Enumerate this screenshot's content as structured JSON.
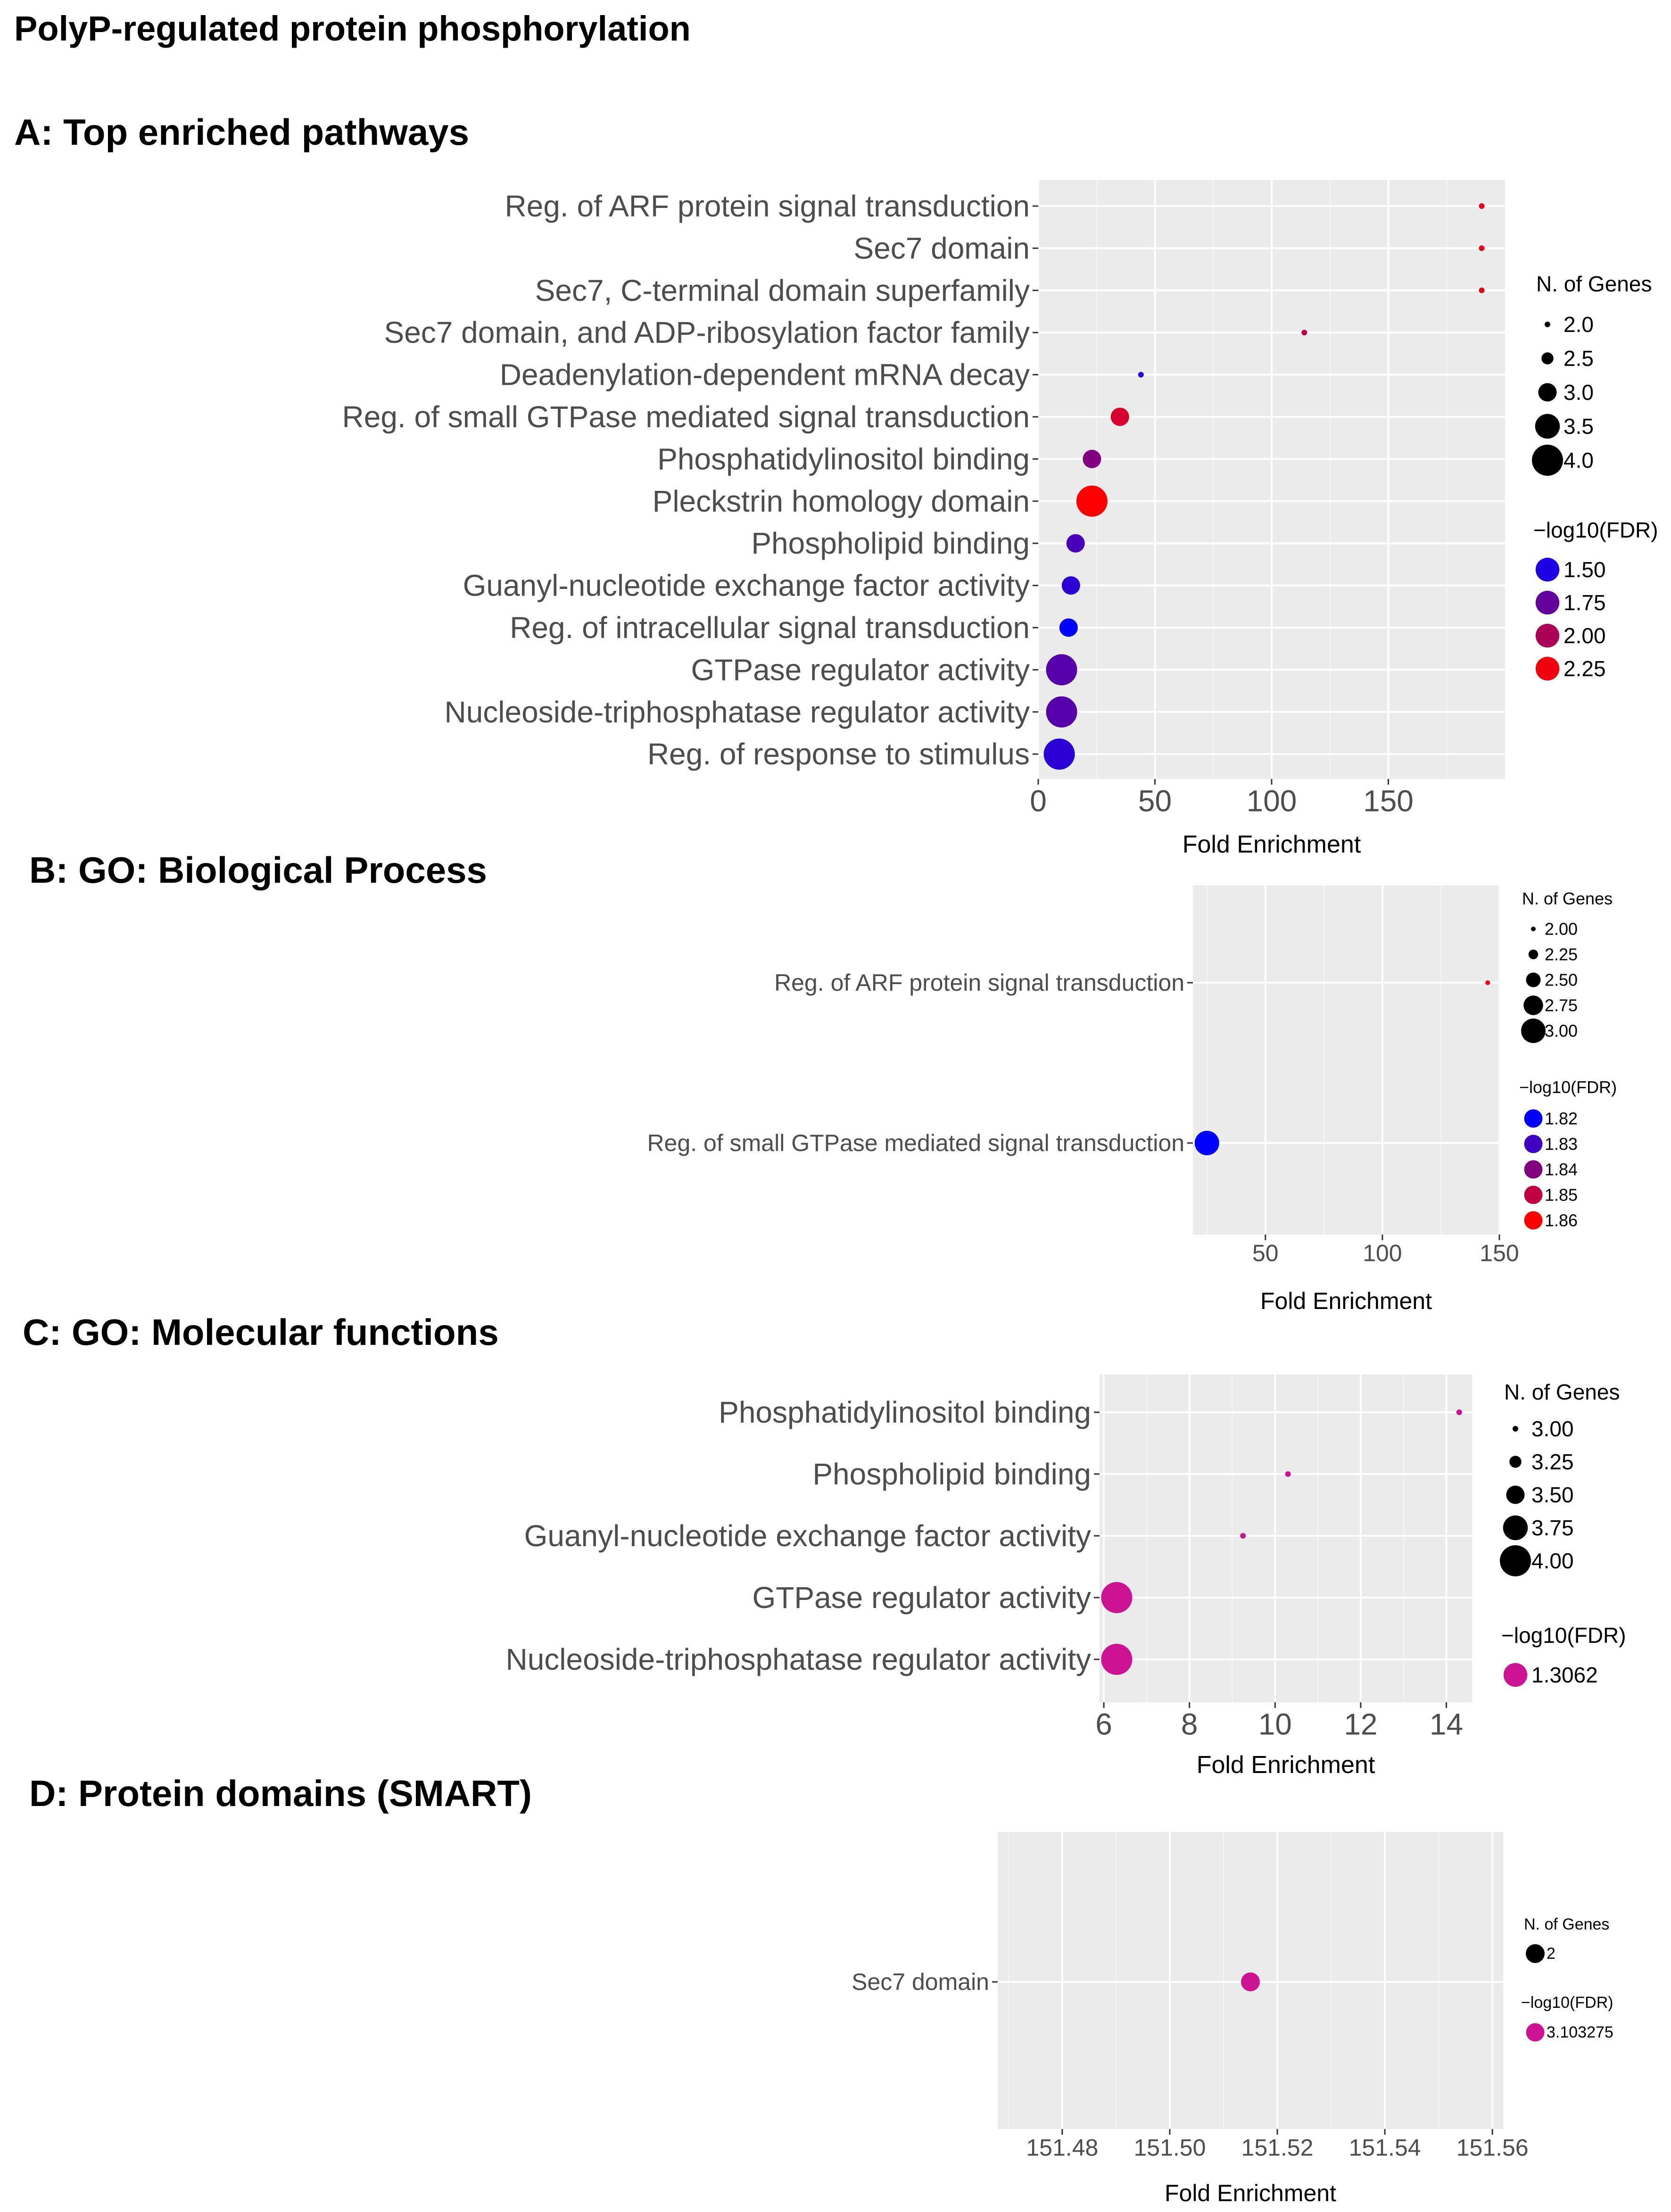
{
  "figure": {
    "title": "PolyP-regulated protein phosphorylation"
  },
  "chart_data": [
    {
      "id": "A",
      "type": "scatter",
      "title": "A: Top enriched pathways",
      "xlabel": "Fold Enrichment",
      "ylabel": "",
      "xlim": [
        0,
        200
      ],
      "xticks": [
        0,
        50,
        100,
        150
      ],
      "categories": [
        "Reg. of ARF protein signal transduction",
        "Sec7 domain",
        "Sec7, C-terminal domain superfamily",
        "Sec7 domain, and ADP-ribosylation factor family",
        "Deadenylation-dependent mRNA decay",
        "Reg. of small GTPase mediated signal transduction",
        "Phosphatidylinositol binding",
        "Pleckstrin homology domain",
        "Phospholipid binding",
        "Guanyl-nucleotide exchange factor activity",
        "Reg. of intracellular signal transduction",
        "GTPase regulator activity",
        "Nucleoside-triphosphatase regulator activity",
        "Reg. of response to stimulus"
      ],
      "points": [
        {
          "category": "Reg. of ARF protein signal transduction",
          "fold_enrichment": 190,
          "n_genes": 2,
          "neg_log10_fdr": 2.2
        },
        {
          "category": "Sec7 domain",
          "fold_enrichment": 190,
          "n_genes": 2,
          "neg_log10_fdr": 2.2
        },
        {
          "category": "Sec7, C-terminal domain superfamily",
          "fold_enrichment": 190,
          "n_genes": 2,
          "neg_log10_fdr": 2.2
        },
        {
          "category": "Sec7 domain, and ADP-ribosylation factor family",
          "fold_enrichment": 114,
          "n_genes": 2,
          "neg_log10_fdr": 2.05
        },
        {
          "category": "Deadenylation-dependent mRNA decay",
          "fold_enrichment": 44,
          "n_genes": 2,
          "neg_log10_fdr": 1.55
        },
        {
          "category": "Reg. of small GTPase mediated signal transduction",
          "fold_enrichment": 35,
          "n_genes": 3,
          "neg_log10_fdr": 2.15
        },
        {
          "category": "Phosphatidylinositol binding",
          "fold_enrichment": 23,
          "n_genes": 3,
          "neg_log10_fdr": 1.85
        },
        {
          "category": "Pleckstrin homology domain",
          "fold_enrichment": 23,
          "n_genes": 4,
          "neg_log10_fdr": 2.3
        },
        {
          "category": "Phospholipid binding",
          "fold_enrichment": 16,
          "n_genes": 3,
          "neg_log10_fdr": 1.65
        },
        {
          "category": "Guanyl-nucleotide exchange factor activity",
          "fold_enrichment": 14,
          "n_genes": 3,
          "neg_log10_fdr": 1.55
        },
        {
          "category": "Reg. of intracellular signal transduction",
          "fold_enrichment": 13,
          "n_genes": 3,
          "neg_log10_fdr": 1.4
        },
        {
          "category": "GTPase regulator activity",
          "fold_enrichment": 10,
          "n_genes": 4,
          "neg_log10_fdr": 1.7
        },
        {
          "category": "Nucleoside-triphosphatase regulator activity",
          "fold_enrichment": 10,
          "n_genes": 4,
          "neg_log10_fdr": 1.7
        },
        {
          "category": "Reg. of response to stimulus",
          "fold_enrichment": 9,
          "n_genes": 4,
          "neg_log10_fdr": 1.55
        }
      ],
      "size_legend": {
        "title": "N. of Genes",
        "labels": [
          "2.0",
          "2.5",
          "3.0",
          "3.5",
          "4.0"
        ],
        "values": [
          2.0,
          2.5,
          3.0,
          3.5,
          4.0
        ],
        "range": [
          2.0,
          4.0
        ]
      },
      "color_legend": {
        "title": "−log10(FDR)",
        "labels": [
          "1.50",
          "1.75",
          "2.00",
          "2.25"
        ],
        "values": [
          1.5,
          1.75,
          2.0,
          2.25
        ],
        "range": [
          1.4,
          2.3
        ],
        "colors": [
          "#0000ff",
          "#ff0000"
        ]
      }
    },
    {
      "id": "B",
      "type": "scatter",
      "title": "B: GO: Biological Process",
      "xlabel": "Fold Enrichment",
      "ylabel": "",
      "xlim": [
        19,
        150
      ],
      "xticks": [
        50,
        100,
        150
      ],
      "categories": [
        "Reg. of ARF protein signal transduction",
        "Reg. of small GTPase mediated signal transduction"
      ],
      "points": [
        {
          "category": "Reg. of ARF protein signal transduction",
          "fold_enrichment": 145,
          "n_genes": 2,
          "neg_log10_fdr": 1.86
        },
        {
          "category": "Reg. of small GTPase mediated signal transduction",
          "fold_enrichment": 25,
          "n_genes": 3,
          "neg_log10_fdr": 1.82
        }
      ],
      "size_legend": {
        "title": "N. of Genes",
        "labels": [
          "2.00",
          "2.25",
          "2.50",
          "2.75",
          "3.00"
        ],
        "values": [
          2.0,
          2.25,
          2.5,
          2.75,
          3.0
        ],
        "range": [
          2.0,
          3.0
        ]
      },
      "color_legend": {
        "title": "−log10(FDR)",
        "labels": [
          "1.82",
          "1.83",
          "1.84",
          "1.85",
          "1.86"
        ],
        "values": [
          1.82,
          1.83,
          1.84,
          1.85,
          1.86
        ],
        "range": [
          1.82,
          1.86
        ],
        "colors": [
          "#0000ff",
          "#ff0000"
        ]
      }
    },
    {
      "id": "C",
      "type": "scatter",
      "title": "C: GO: Molecular functions",
      "xlabel": "Fold Enrichment",
      "ylabel": "",
      "xlim": [
        5.9,
        14.6
      ],
      "xticks": [
        6,
        8,
        10,
        12,
        14
      ],
      "categories": [
        "Phosphatidylinositol binding",
        "Phospholipid binding",
        "Guanyl-nucleotide exchange factor activity",
        "GTPase regulator activity",
        "Nucleoside-triphosphatase regulator activity"
      ],
      "points": [
        {
          "category": "Phosphatidylinositol binding",
          "fold_enrichment": 14.3,
          "n_genes": 3,
          "neg_log10_fdr": 1.3062
        },
        {
          "category": "Phospholipid binding",
          "fold_enrichment": 10.3,
          "n_genes": 3,
          "neg_log10_fdr": 1.3062
        },
        {
          "category": "Guanyl-nucleotide exchange factor activity",
          "fold_enrichment": 9.25,
          "n_genes": 3,
          "neg_log10_fdr": 1.3062
        },
        {
          "category": "GTPase regulator activity",
          "fold_enrichment": 6.3,
          "n_genes": 4,
          "neg_log10_fdr": 1.3062
        },
        {
          "category": "Nucleoside-triphosphatase regulator activity",
          "fold_enrichment": 6.3,
          "n_genes": 4,
          "neg_log10_fdr": 1.3062
        }
      ],
      "size_legend": {
        "title": "N. of Genes",
        "labels": [
          "3.00",
          "3.25",
          "3.50",
          "3.75",
          "4.00"
        ],
        "values": [
          3.0,
          3.25,
          3.5,
          3.75,
          4.0
        ],
        "range": [
          3.0,
          4.0
        ]
      },
      "color_legend": {
        "title": "−log10(FDR)",
        "labels": [
          "1.3062"
        ],
        "values": [
          1.3062
        ],
        "range": [
          1.3062,
          1.3062
        ],
        "colors": [
          "#cc1493",
          "#cc1493"
        ]
      }
    },
    {
      "id": "D",
      "type": "scatter",
      "title": "D: Protein domains (SMART)",
      "xlabel": "Fold Enrichment",
      "ylabel": "",
      "xlim": [
        151.468,
        151.562
      ],
      "xticks": [
        151.48,
        151.5,
        151.52,
        151.54,
        151.56
      ],
      "xtick_labels": [
        "151.48",
        "151.50",
        "151.52",
        "151.54",
        "151.56"
      ],
      "categories": [
        "Sec7 domain"
      ],
      "points": [
        {
          "category": "Sec7 domain",
          "fold_enrichment": 151.515,
          "n_genes": 2,
          "neg_log10_fdr": 3.103275
        }
      ],
      "size_legend": {
        "title": "N. of Genes",
        "labels": [
          "2"
        ],
        "values": [
          2
        ],
        "range": [
          2,
          2
        ]
      },
      "color_legend": {
        "title": "−log10(FDR)",
        "labels": [
          "3.103275"
        ],
        "values": [
          3.103275
        ],
        "range": [
          3.103275,
          3.103275
        ],
        "colors": [
          "#cc1493",
          "#cc1493"
        ]
      }
    }
  ]
}
